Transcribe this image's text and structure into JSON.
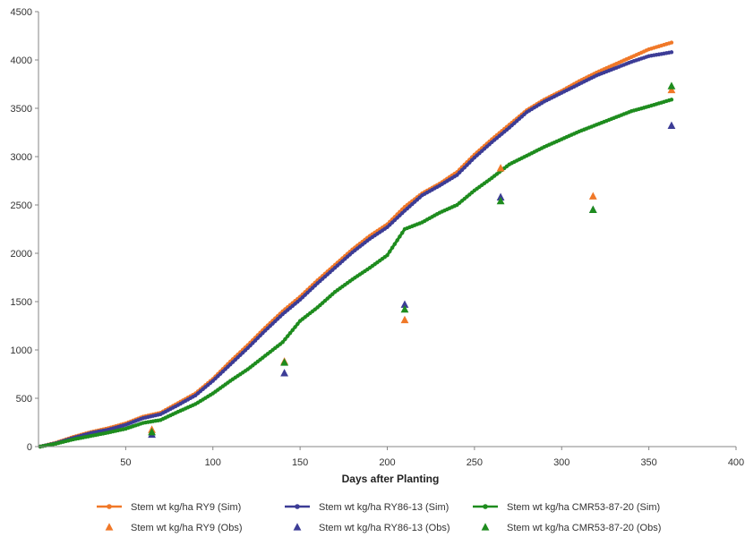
{
  "chart_data": {
    "type": "line",
    "xlabel": "Days after Planting",
    "ylabel": "",
    "xlim": [
      0,
      400
    ],
    "ylim": [
      0,
      4500
    ],
    "x_ticks": [
      50,
      100,
      150,
      200,
      250,
      300,
      350,
      400
    ],
    "y_ticks": [
      0,
      500,
      1000,
      1500,
      2000,
      2500,
      3000,
      3500,
      4000,
      4500
    ],
    "grid": false,
    "legend_position": "bottom",
    "series": [
      {
        "name": "Stem wt kg/ha RY9 (Sim)",
        "kind": "line",
        "marker": "circle",
        "color": "#F07828",
        "x": [
          1,
          10,
          20,
          30,
          40,
          50,
          60,
          70,
          80,
          90,
          100,
          110,
          120,
          130,
          140,
          150,
          160,
          170,
          180,
          190,
          200,
          210,
          220,
          230,
          240,
          250,
          260,
          270,
          280,
          290,
          300,
          310,
          320,
          330,
          340,
          350,
          363
        ],
        "y": [
          0,
          40,
          100,
          150,
          190,
          240,
          310,
          350,
          450,
          550,
          700,
          880,
          1050,
          1230,
          1400,
          1550,
          1720,
          1880,
          2040,
          2180,
          2300,
          2480,
          2620,
          2720,
          2840,
          3020,
          3180,
          3330,
          3480,
          3590,
          3680,
          3780,
          3870,
          3950,
          4030,
          4110,
          4180
        ]
      },
      {
        "name": "Stem wt kg/ha RY86-13 (Sim)",
        "kind": "line",
        "marker": "circle",
        "color": "#3C3C96",
        "x": [
          1,
          10,
          20,
          30,
          40,
          50,
          60,
          70,
          80,
          90,
          100,
          110,
          120,
          130,
          140,
          150,
          160,
          170,
          180,
          190,
          200,
          210,
          220,
          230,
          240,
          250,
          260,
          270,
          280,
          290,
          300,
          310,
          320,
          330,
          340,
          350,
          363
        ],
        "y": [
          0,
          35,
          90,
          140,
          175,
          225,
          295,
          335,
          430,
          530,
          680,
          850,
          1020,
          1200,
          1370,
          1520,
          1690,
          1850,
          2010,
          2150,
          2270,
          2440,
          2600,
          2700,
          2810,
          2990,
          3150,
          3300,
          3460,
          3570,
          3660,
          3750,
          3840,
          3910,
          3980,
          4040,
          4080
        ]
      },
      {
        "name": "Stem wt kg/ha CMR53-87-20 (Sim)",
        "kind": "line",
        "marker": "circle",
        "color": "#1E8C1E",
        "x": [
          1,
          10,
          20,
          30,
          40,
          50,
          60,
          70,
          80,
          90,
          100,
          110,
          120,
          130,
          140,
          150,
          160,
          170,
          180,
          190,
          200,
          210,
          220,
          230,
          240,
          250,
          260,
          270,
          280,
          290,
          300,
          310,
          320,
          330,
          340,
          350,
          363
        ],
        "y": [
          0,
          30,
          75,
          110,
          145,
          185,
          245,
          275,
          360,
          440,
          550,
          680,
          800,
          940,
          1080,
          1300,
          1440,
          1600,
          1730,
          1850,
          1980,
          2250,
          2320,
          2420,
          2500,
          2650,
          2780,
          2920,
          3010,
          3100,
          3180,
          3260,
          3330,
          3400,
          3470,
          3520,
          3590
        ]
      },
      {
        "name": "Stem wt kg/ha  RY9 (Obs)",
        "kind": "scatter",
        "marker": "triangle",
        "color": "#F07828",
        "x": [
          65,
          141,
          210,
          265,
          318,
          363
        ],
        "y": [
          175,
          880,
          1310,
          2880,
          2590,
          3690
        ]
      },
      {
        "name": "Stem wt kg/ha  RY86-13 (Obs)",
        "kind": "scatter",
        "marker": "triangle",
        "color": "#3C3C96",
        "x": [
          65,
          141,
          210,
          265,
          318,
          363
        ],
        "y": [
          125,
          760,
          1470,
          2580,
          2450,
          3320
        ]
      },
      {
        "name": "Stem wt kg/ha  CMR53-87-20 (Obs)",
        "kind": "scatter",
        "marker": "triangle",
        "color": "#1E8C1E",
        "x": [
          65,
          141,
          210,
          265,
          318,
          363
        ],
        "y": [
          150,
          870,
          1420,
          2540,
          2450,
          3730
        ]
      }
    ]
  }
}
